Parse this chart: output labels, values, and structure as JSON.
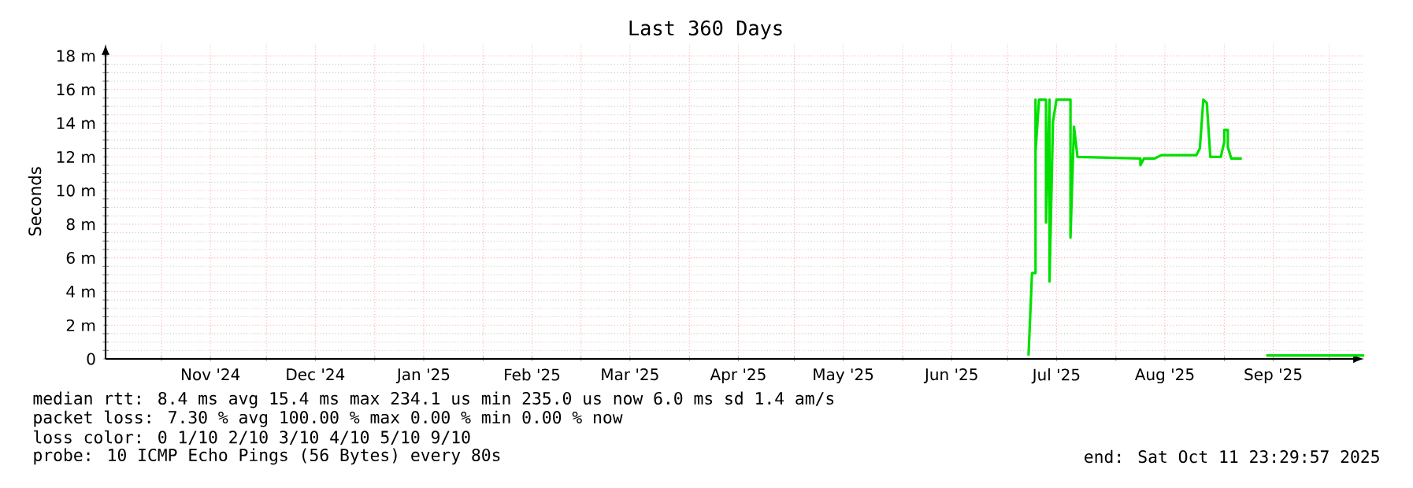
{
  "chart_data": {
    "type": "line",
    "title": "Last 360 Days",
    "ylabel": "Seconds",
    "xlim": [
      "2024-10-16",
      "2025-10-11"
    ],
    "xticks": [
      {
        "value": "2024-11-01",
        "label": null
      },
      {
        "value": "2024-11-15",
        "label": "Nov '24"
      },
      {
        "value": "2024-12-01",
        "label": null
      },
      {
        "value": "2024-12-15",
        "label": "Dec '24"
      },
      {
        "value": "2025-01-01",
        "label": null
      },
      {
        "value": "2025-01-15",
        "label": "Jan '25"
      },
      {
        "value": "2025-02-01",
        "label": null
      },
      {
        "value": "2025-02-15",
        "label": "Feb '25"
      },
      {
        "value": "2025-03-01",
        "label": null
      },
      {
        "value": "2025-03-15",
        "label": "Mar '25"
      },
      {
        "value": "2025-04-01",
        "label": null
      },
      {
        "value": "2025-04-15",
        "label": "Apr '25"
      },
      {
        "value": "2025-05-01",
        "label": null
      },
      {
        "value": "2025-05-15",
        "label": "May '25"
      },
      {
        "value": "2025-06-01",
        "label": null
      },
      {
        "value": "2025-06-15",
        "label": "Jun '25"
      },
      {
        "value": "2025-07-01",
        "label": null
      },
      {
        "value": "2025-07-15",
        "label": "Jul '25"
      },
      {
        "value": "2025-08-01",
        "label": null
      },
      {
        "value": "2025-08-15",
        "label": "Aug '25"
      },
      {
        "value": "2025-09-01",
        "label": null
      },
      {
        "value": "2025-09-15",
        "label": "Sep '25"
      },
      {
        "value": "2025-10-01",
        "label": null
      }
    ],
    "ylim": [
      0,
      18.7
    ],
    "yticks": [
      0,
      {
        "value": 2,
        "label": "2 m"
      },
      {
        "value": 4,
        "label": "4 m"
      },
      {
        "value": 6,
        "label": "6 m"
      },
      {
        "value": 8,
        "label": "8 m"
      },
      {
        "value": 10,
        "label": "10 m"
      },
      {
        "value": 12,
        "label": "12 m"
      },
      {
        "value": 14,
        "label": "14 m"
      },
      {
        "value": 16,
        "label": "16 m"
      },
      {
        "value": 18,
        "label": "18 m"
      }
    ],
    "grid": true,
    "marker": "none",
    "line_style": "solid",
    "series": [
      {
        "color": "#00e000",
        "x": [
          "2025-07-07",
          "2025-07-08",
          "2025-07-09",
          "2025-07-09",
          "2025-07-09",
          "2025-07-10",
          "2025-07-12",
          "2025-07-12",
          "2025-07-13",
          "2025-07-13",
          "2025-07-14",
          "2025-07-15",
          "2025-07-19",
          "2025-07-19",
          "2025-07-20",
          "2025-07-21",
          "2025-08-08",
          "2025-08-08",
          "2025-08-09",
          "2025-08-12",
          "2025-08-14",
          "2025-08-24",
          "2025-08-25",
          "2025-08-26",
          "2025-08-27",
          "2025-08-28",
          "2025-08-31",
          "2025-09-01",
          "2025-09-01",
          "2025-09-02",
          "2025-09-02",
          "2025-09-03",
          "2025-09-06",
          "2025-09-10",
          "2025-09-13",
          "2025-10-11"
        ],
        "values": [
          0.2,
          5.1,
          5.1,
          15.4,
          12.3,
          15.4,
          15.4,
          8.1,
          15.4,
          4.6,
          14.1,
          15.4,
          15.4,
          7.2,
          13.8,
          12.0,
          11.9,
          11.5,
          11.9,
          11.9,
          12.1,
          12.1,
          12.5,
          15.4,
          15.2,
          12.0,
          12.0,
          12.9,
          13.6,
          13.6,
          12.6,
          11.9,
          11.9,
          null,
          0.2,
          0.2
        ]
      }
    ],
    "annotations": [
      "median rtt:  8.4 ms avg  15.4 ms max  234.1 us min  235.0 us now  6.0 ms sd  1.4   am/s",
      "packet loss: 7.30 % avg  100.00 % max  0.00 % min  0.00 % now",
      "loss color:  0  1/10  2/10  3/10  4/10  5/10  9/10",
      "probe:       10 ICMP Echo Pings (56 Bytes) every 80s",
      "end: Sat Oct 11 23:29:57 2025"
    ]
  }
}
